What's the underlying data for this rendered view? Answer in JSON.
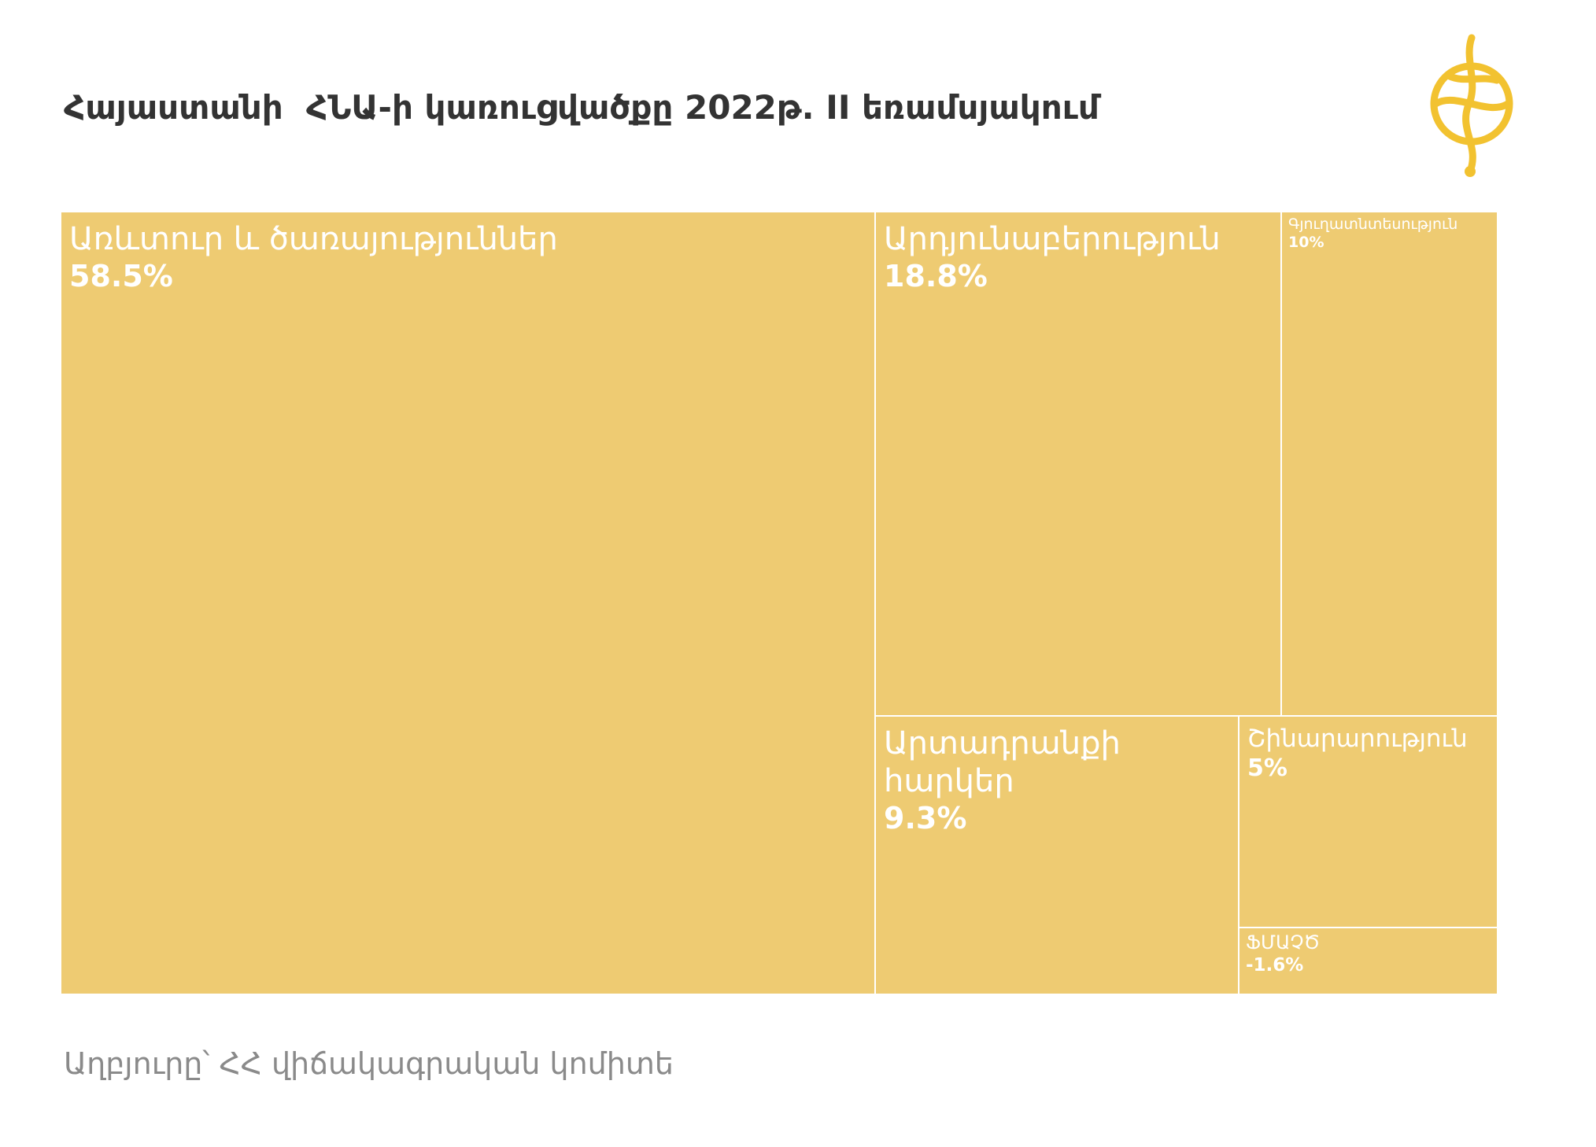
{
  "chart_data": {
    "type": "treemap",
    "title": "Հայաստանի  ՀՆԱ-ի կառուցվածքը 2022թ. II եռամսյակում",
    "source": "Աղբյուրը՝ ՀՀ վիճակագրական կոմիտե",
    "categories": [
      "Առևտուր և ծառայություններ",
      "Արդյունաբերություն",
      "Գյուղատնտեսություն",
      "Արտադրանքի հարկեր",
      "Շինարարություն",
      "ՖՄԱՉԾ"
    ],
    "values": [
      58.5,
      18.8,
      10,
      9.3,
      5,
      -1.6
    ],
    "value_labels": [
      "58.5%",
      "18.8%",
      "10%",
      "9.3%",
      "5%",
      "-1.6%"
    ],
    "color": "#eecb72"
  }
}
